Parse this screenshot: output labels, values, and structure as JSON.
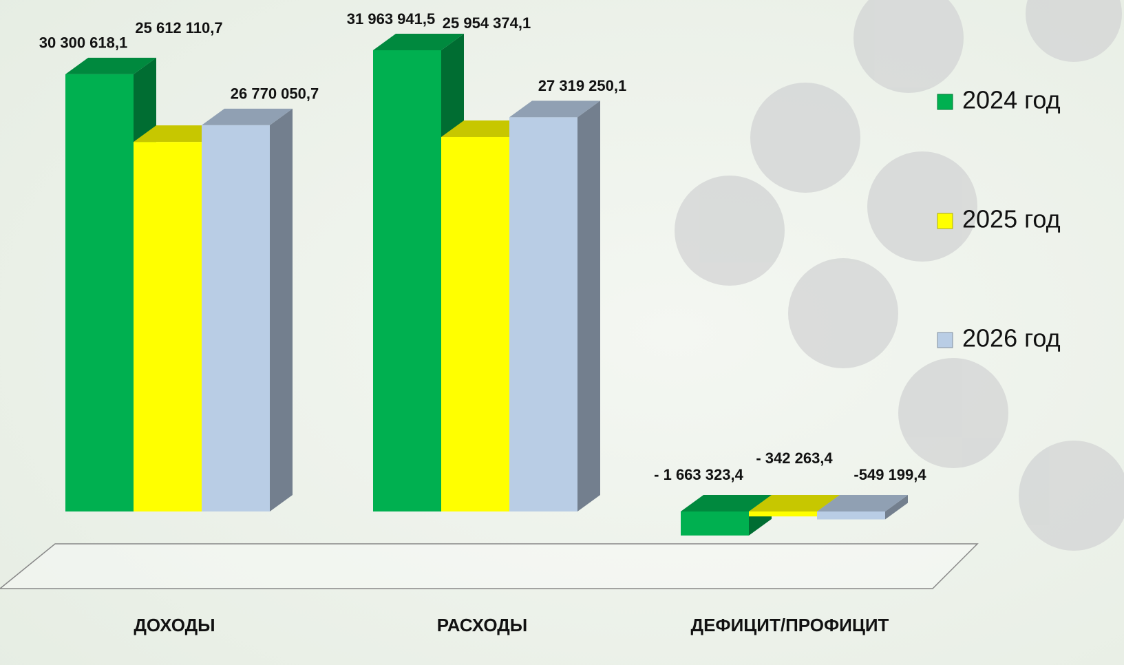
{
  "chart_data": {
    "type": "bar3d",
    "categories": [
      "ДОХОДЫ",
      "РАСХОДЫ",
      "ДЕФИЦИТ/ПРОФИЦИТ"
    ],
    "series": [
      {
        "name": "2024 год",
        "color": "#00b050",
        "values": [
          30300618.1,
          31963941.5,
          -1663323.4
        ],
        "value_labels": [
          "30 300 618,1",
          "31 963 941,5",
          "- 1 663 323,4"
        ]
      },
      {
        "name": "2025 год",
        "color": "#ffff00",
        "values": [
          25612110.7,
          25954374.1,
          -342263.4
        ],
        "value_labels": [
          "25 612 110,7",
          "25 954 374,1",
          "- 342 263,4"
        ]
      },
      {
        "name": "2026 год",
        "color": "#b9cde5",
        "values": [
          26770050.7,
          27319250.1,
          -549199.4
        ],
        "value_labels": [
          "26 770 050,7",
          "27 319 250,1",
          "-549 199,4"
        ]
      }
    ],
    "legend": "right"
  }
}
